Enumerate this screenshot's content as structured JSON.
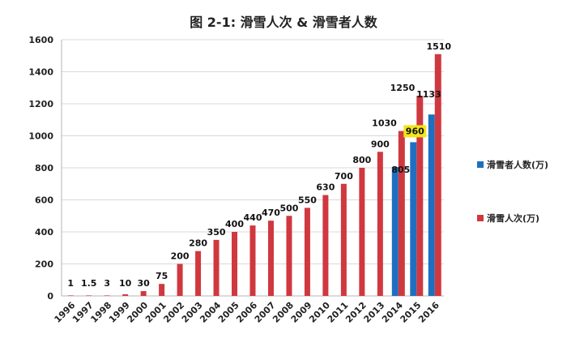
{
  "chart_data": {
    "type": "bar",
    "title": "图 2-1: 滑雪人次 & 滑雪者人数",
    "xlabel": "",
    "ylabel": "",
    "ylim": [
      0,
      1600
    ],
    "yticks": [
      0,
      200,
      400,
      600,
      800,
      1000,
      1200,
      1400,
      1600
    ],
    "grid": true,
    "legend_position": "right",
    "categories": [
      "1996",
      "1997",
      "1998",
      "1999",
      "2000",
      "2001",
      "2002",
      "2003",
      "2004",
      "2005",
      "2006",
      "2007",
      "2008",
      "2009",
      "2010",
      "2011",
      "2012",
      "2013",
      "2014",
      "2015",
      "2016"
    ],
    "series": [
      {
        "name": "滑雪者人数(万)",
        "color": "#1f6fc0",
        "values": [
          null,
          null,
          null,
          null,
          null,
          null,
          null,
          null,
          null,
          null,
          null,
          null,
          null,
          null,
          null,
          null,
          null,
          null,
          805,
          960,
          1133
        ],
        "labels": [
          "",
          "",
          "",
          "",
          "",
          "",
          "",
          "",
          "",
          "",
          "",
          "",
          "",
          "",
          "",
          "",
          "",
          "",
          "805",
          "960",
          "1133"
        ]
      },
      {
        "name": "滑雪人次(万)",
        "color": "#d0383f",
        "values": [
          1,
          1.5,
          3,
          10,
          30,
          75,
          200,
          280,
          350,
          400,
          440,
          470,
          500,
          550,
          630,
          700,
          800,
          900,
          1030,
          1250,
          1510
        ],
        "labels": [
          "1",
          "1.5",
          "3",
          "10",
          "30",
          "75",
          "200",
          "280",
          "350",
          "400",
          "440",
          "470",
          "500",
          "550",
          "630",
          "700",
          "800",
          "900",
          "1030",
          "1250",
          "1510"
        ]
      }
    ],
    "highlight_color": "#f2e51a"
  }
}
